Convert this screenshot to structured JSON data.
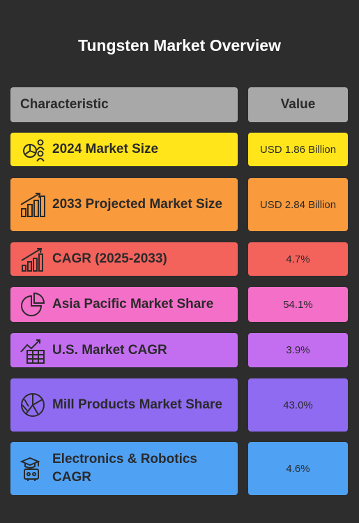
{
  "title": "Tungsten Market Overview",
  "header": {
    "characteristic": "Characteristic",
    "value": "Value"
  },
  "rows": [
    {
      "label": "2024 Market Size",
      "value": "USD 1.86 Billion",
      "color": "#ffe51a",
      "icon": "pie-people-icon"
    },
    {
      "label": "2033 Projected Market Size",
      "value": "USD 2.84 Billion",
      "color": "#f99a3c",
      "icon": "growth-bars-icon"
    },
    {
      "label": "CAGR (2025-2033)",
      "value": "4.7%",
      "color": "#f4625c",
      "icon": "bar-chart-arrow-icon"
    },
    {
      "label": "Asia Pacific Market Share",
      "value": "54.1%",
      "color": "#f36fc8",
      "icon": "pie-chart-icon"
    },
    {
      "label": "U.S. Market CAGR",
      "value": "3.9%",
      "color": "#c36ef0",
      "icon": "calculator-trend-icon"
    },
    {
      "label": "Mill Products Market Share",
      "value": "43.0%",
      "color": "#8f6bf1",
      "icon": "pie-segments-icon"
    },
    {
      "label": "Electronics & Robotics CAGR",
      "value": "4.6%",
      "color": "#4fa1f4",
      "icon": "robot-icon"
    }
  ],
  "chart_data": {
    "type": "table",
    "title": "Tungsten Market Overview",
    "columns": [
      "Characteristic",
      "Value"
    ],
    "rows": [
      [
        "2024 Market Size",
        "USD 1.86 Billion"
      ],
      [
        "2033 Projected Market Size",
        "USD 2.84 Billion"
      ],
      [
        "CAGR (2025-2033)",
        "4.7%"
      ],
      [
        "Asia Pacific Market Share",
        "54.1%"
      ],
      [
        "U.S. Market CAGR",
        "3.9%"
      ],
      [
        "Mill Products Market Share",
        "43.0%"
      ],
      [
        "Electronics & Robotics CAGR",
        "4.6%"
      ]
    ]
  }
}
